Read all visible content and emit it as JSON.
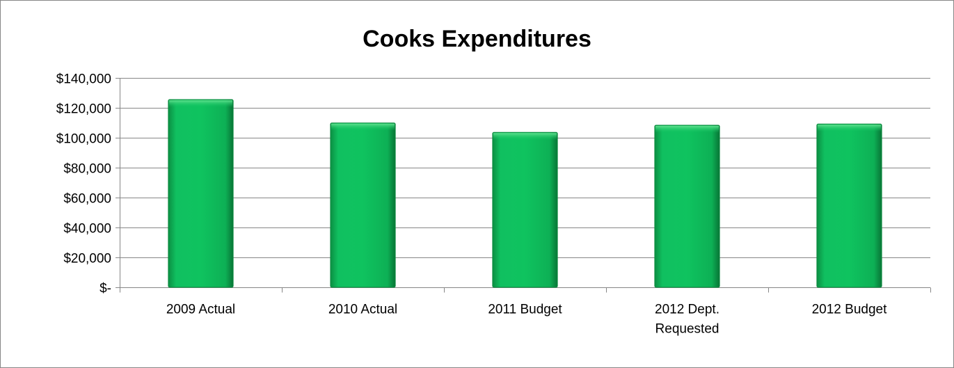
{
  "chart_data": {
    "type": "bar",
    "title": "Cooks Expenditures",
    "xlabel": "",
    "ylabel": "",
    "categories": [
      "2009 Actual",
      "2010 Actual",
      "2011 Budget",
      "2012 Dept. Requested",
      "2012 Budget"
    ],
    "category_lines": [
      [
        "2009 Actual"
      ],
      [
        "2010 Actual"
      ],
      [
        "2011 Budget"
      ],
      [
        "2012 Dept.",
        "Requested"
      ],
      [
        "2012 Budget"
      ]
    ],
    "values": [
      125500,
      109900,
      103600,
      108400,
      109200
    ],
    "ylim": [
      0,
      140000
    ],
    "yticks": [
      0,
      20000,
      40000,
      60000,
      80000,
      100000,
      120000,
      140000
    ],
    "ytick_labels": [
      "$-",
      "$20,000",
      "$40,000",
      "$60,000",
      "$80,000",
      "$100,000",
      "$120,000",
      "$140,000"
    ],
    "grid": true,
    "legend": "none",
    "bar_color": "#0abf5a",
    "bar_edge_color": "#0a8a3e"
  }
}
